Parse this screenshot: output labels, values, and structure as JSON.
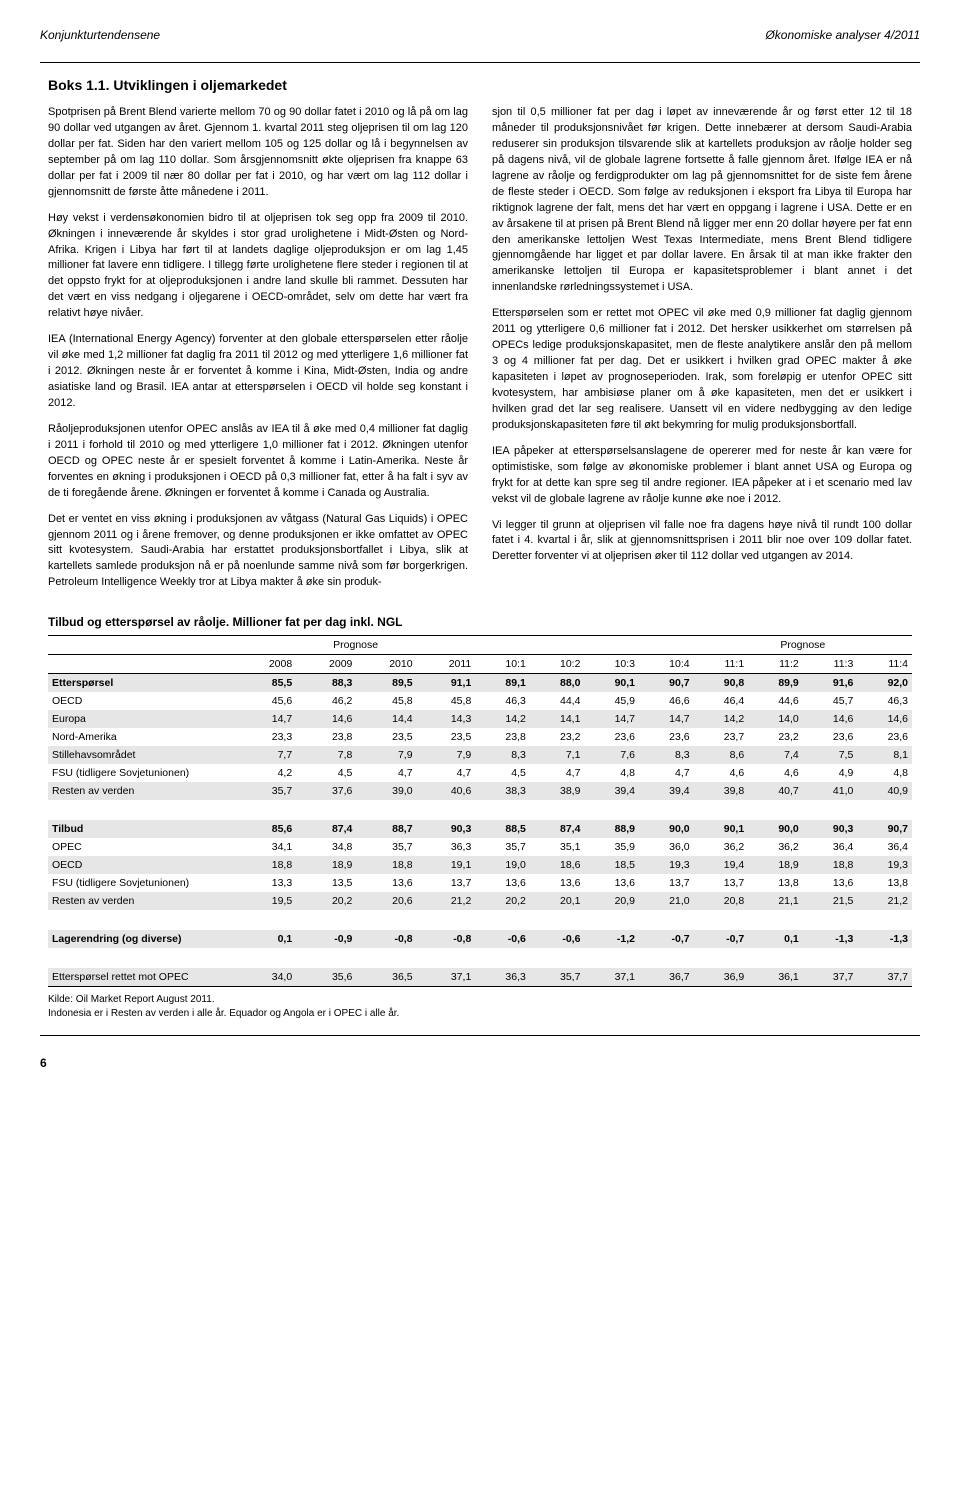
{
  "header": {
    "left": "Konjunkturtendensene",
    "right": "Økonomiske analyser 4/2011"
  },
  "box": {
    "title": "Boks 1.1. Utviklingen i oljemarkedet",
    "left_paras": [
      "Spotprisen på Brent Blend varierte mellom 70 og 90 dollar fatet i 2010 og lå på om lag 90 dollar ved utgangen av året. Gjennom 1. kvartal 2011 steg oljeprisen til om lag 120 dollar per fat. Siden har den variert mellom 105 og 125 dollar og lå i begynnelsen av september på om lag 110 dollar. Som årsgjennomsnitt økte oljeprisen fra knappe 63 dollar per fat i 2009 til nær 80 dollar per fat i 2010, og har vært om lag 112 dollar i gjennomsnitt de første åtte månedene i 2011.",
      "Høy vekst i verdensøkonomien bidro til at oljeprisen tok seg opp fra 2009 til 2010. Økningen i inneværende år skyldes i stor grad urolighetene i Midt-Østen og Nord-Afrika. Krigen i Libya har ført til at landets daglige oljeproduksjon er om lag 1,45 millioner fat lavere enn tidligere. I tillegg førte urolighetene flere steder i regionen til at det oppsto frykt for at oljeproduksjonen i andre land skulle bli rammet. Dessuten har det vært en viss nedgang i oljegarene i OECD-området, selv om dette har vært fra relativt høye nivåer.",
      "IEA (International Energy Agency) forventer at den globale etterspørselen etter råolje vil øke med 1,2 millioner fat daglig fra 2011 til 2012 og med ytterligere 1,6 millioner fat i 2012. Økningen neste år er forventet å komme i Kina, Midt-Østen, India og andre asiatiske land og Brasil. IEA antar at etterspørselen i OECD vil holde seg konstant i 2012.",
      "Råoljeproduksjonen utenfor OPEC anslås av IEA til å øke med 0,4 millioner fat daglig i 2011 i forhold til 2010 og med ytterligere 1,0 millioner fat i 2012. Økningen utenfor OECD og OPEC neste år er spesielt forventet å komme i Latin-Amerika. Neste år forventes en økning i produksjonen i OECD på 0,3 millioner fat, etter å ha falt i syv av de ti foregående årene. Økningen er forventet å komme i Canada og Australia.",
      "Det er ventet en viss økning i produksjonen av våtgass (Natural Gas Liquids) i OPEC gjennom 2011 og i årene fremover, og denne produksjonen er ikke omfattet av OPEC sitt kvotesystem. Saudi-Arabia har erstattet produksjonsbortfallet i Libya, slik at kartellets samlede produksjon nå er på noenlunde samme nivå som før borgerkrigen. Petroleum Intelligence Weekly tror at Libya makter å øke sin produk-"
    ],
    "right_paras": [
      "sjon til 0,5 millioner fat per dag i løpet av inneværende år og først etter 12 til 18 måneder til produksjonsnivået før krigen. Dette innebærer at dersom Saudi-Arabia reduserer sin produksjon tilsvarende slik at kartellets produksjon av råolje holder seg på dagens nivå, vil de globale lagrene fortsette å falle gjennom året. Ifølge IEA er nå lagrene av råolje og ferdigprodukter om lag på gjennomsnittet for de siste fem årene de fleste steder i OECD. Som følge av reduksjonen i eksport fra Libya til Europa har riktignok lagrene der falt, mens det har vært en oppgang i lagrene i USA. Dette er en av årsakene til at prisen på Brent Blend nå ligger mer enn 20 dollar høyere per fat enn den amerikanske lettoljen West Texas Intermediate, mens Brent Blend tidligere gjennomgående har ligget et par dollar lavere. En årsak til at man ikke frakter den amerikanske lettoljen til Europa er kapasitetsproblemer i blant annet i det innenlandske rørledningssystemet i USA.",
      "Etterspørselen som er rettet mot OPEC vil øke med 0,9 millioner fat daglig gjennom 2011 og ytterligere 0,6 millioner fat i 2012. Det hersker usikkerhet om størrelsen på OPECs ledige produksjonskapasitet, men de fleste analytikere anslår den på mellom 3 og 4 millioner fat per dag. Det er usikkert i hvilken grad OPEC makter å øke kapasiteten i løpet av prognoseperioden. Irak, som foreløpig er utenfor OPEC sitt kvotesystem, har ambisiøse planer om å øke kapasiteten, men det er usikkert i hvilken grad det lar seg realisere. Uansett vil en videre nedbygging av den ledige produksjonskapasiteten føre til økt bekymring for mulig produksjonsbortfall.",
      "IEA påpeker at etterspørselsanslagene de opererer med for neste år kan være for optimistiske, som følge av økonomiske problemer i blant annet USA og Europa og frykt for at dette kan spre seg til andre regioner. IEA påpeker at i et scenario med lav vekst vil de globale lagrene av råolje kunne øke noe i 2012.",
      "Vi legger til grunn at oljeprisen vil falle noe fra dagens høye nivå til rundt 100 dollar fatet i 4. kvartal i år, slik at gjennomsnittsprisen i 2011 blir noe over 109 dollar fatet. Deretter forventer vi at oljeprisen øker til 112 dollar ved utgangen av 2014."
    ]
  },
  "table": {
    "title": "Tilbud og etterspørsel av råolje. Millioner fat per dag inkl. NGL",
    "prognose_label": "Prognose",
    "columns": [
      "",
      "2008",
      "2009",
      "2010",
      "2011",
      "10:1",
      "10:2",
      "10:3",
      "10:4",
      "11:1",
      "11:2",
      "11:3",
      "11:4"
    ],
    "rows": [
      {
        "label": "Etterspørsel",
        "cells": [
          "85,5",
          "88,3",
          "89,5",
          "91,1",
          "89,1",
          "88,0",
          "90,1",
          "90,7",
          "90,8",
          "89,9",
          "91,6",
          "92,0"
        ],
        "section": true,
        "shade": true
      },
      {
        "label": "OECD",
        "cells": [
          "45,6",
          "46,2",
          "45,8",
          "45,8",
          "46,3",
          "44,4",
          "45,9",
          "46,6",
          "46,4",
          "44,6",
          "45,7",
          "46,3"
        ]
      },
      {
        "label": "  Europa",
        "cells": [
          "14,7",
          "14,6",
          "14,4",
          "14,3",
          "14,2",
          "14,1",
          "14,7",
          "14,7",
          "14,2",
          "14,0",
          "14,6",
          "14,6"
        ],
        "shade": true
      },
      {
        "label": "  Nord-Amerika",
        "cells": [
          "23,3",
          "23,8",
          "23,5",
          "23,5",
          "23,8",
          "23,2",
          "23,6",
          "23,6",
          "23,7",
          "23,2",
          "23,6",
          "23,6"
        ]
      },
      {
        "label": "  Stillehavsområdet",
        "cells": [
          "7,7",
          "7,8",
          "7,9",
          "7,9",
          "8,3",
          "7,1",
          "7,6",
          "8,3",
          "8,6",
          "7,4",
          "7,5",
          "8,1"
        ],
        "shade": true
      },
      {
        "label": "FSU (tidligere Sovjetunionen)",
        "cells": [
          "4,2",
          "4,5",
          "4,7",
          "4,7",
          "4,5",
          "4,7",
          "4,8",
          "4,7",
          "4,6",
          "4,6",
          "4,9",
          "4,8"
        ]
      },
      {
        "label": "Resten av verden",
        "cells": [
          "35,7",
          "37,6",
          "39,0",
          "40,6",
          "38,3",
          "38,9",
          "39,4",
          "39,4",
          "39,8",
          "40,7",
          "41,0",
          "40,9"
        ],
        "shade": true
      },
      {
        "spacer": true
      },
      {
        "label": "Tilbud",
        "cells": [
          "85,6",
          "87,4",
          "88,7",
          "90,3",
          "88,5",
          "87,4",
          "88,9",
          "90,0",
          "90,1",
          "90,0",
          "90,3",
          "90,7"
        ],
        "section": true,
        "shade": true
      },
      {
        "label": "OPEC",
        "cells": [
          "34,1",
          "34,8",
          "35,7",
          "36,3",
          "35,7",
          "35,1",
          "35,9",
          "36,0",
          "36,2",
          "36,2",
          "36,4",
          "36,4"
        ]
      },
      {
        "label": "OECD",
        "cells": [
          "18,8",
          "18,9",
          "18,8",
          "19,1",
          "19,0",
          "18,6",
          "18,5",
          "19,3",
          "19,4",
          "18,9",
          "18,8",
          "19,3"
        ],
        "shade": true
      },
      {
        "label": "FSU (tidligere Sovjetunionen)",
        "cells": [
          "13,3",
          "13,5",
          "13,6",
          "13,7",
          "13,6",
          "13,6",
          "13,6",
          "13,7",
          "13,7",
          "13,8",
          "13,6",
          "13,8"
        ]
      },
      {
        "label": "Resten av verden",
        "cells": [
          "19,5",
          "20,2",
          "20,6",
          "21,2",
          "20,2",
          "20,1",
          "20,9",
          "21,0",
          "20,8",
          "21,1",
          "21,5",
          "21,2"
        ],
        "shade": true
      },
      {
        "spacer": true
      },
      {
        "label": "Lagerendring (og diverse)",
        "cells": [
          "0,1",
          "-0,9",
          "-0,8",
          "-0,8",
          "-0,6",
          "-0,6",
          "-1,2",
          "-0,7",
          "-0,7",
          "0,1",
          "-1,3",
          "-1,3"
        ],
        "section": true,
        "shade": true
      },
      {
        "spacer": true
      },
      {
        "label": "Etterspørsel rettet mot OPEC",
        "cells": [
          "34,0",
          "35,6",
          "36,5",
          "37,1",
          "36,3",
          "35,7",
          "37,1",
          "36,7",
          "36,9",
          "36,1",
          "37,7",
          "37,7"
        ],
        "shade": true,
        "bottomborder": true
      }
    ],
    "footnotes": [
      "Kilde: Oil Market Report August 2011.",
      "Indonesia er i Resten av verden i alle år. Equador og Angola er i OPEC i alle år."
    ]
  },
  "page_number": "6"
}
